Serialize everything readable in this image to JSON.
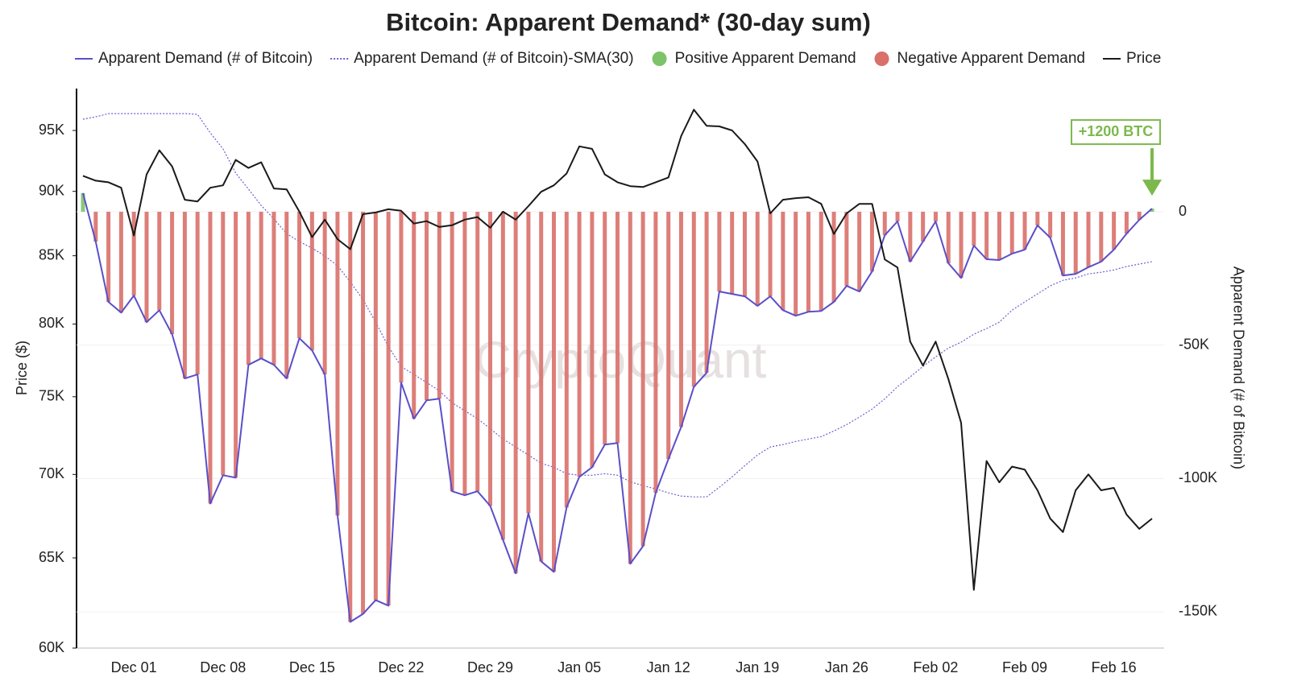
{
  "chart_data": {
    "type": "line",
    "title": "Bitcoin: Apparent Demand* (30-day sum)",
    "ylabel": "Price ($)",
    "y2label": "Apparent Demand (# of Bitcoin)",
    "watermark": "CryptoQuant",
    "annotation": "+1200 BTC",
    "annotation_color": "#7cb94c",
    "yscale": "log",
    "grid": true,
    "categories": [
      null,
      null,
      null,
      null,
      "Dec 01",
      null,
      null,
      null,
      null,
      null,
      null,
      "Dec 08",
      null,
      null,
      null,
      null,
      null,
      null,
      "Dec 15",
      null,
      null,
      null,
      null,
      null,
      null,
      "Dec 22",
      null,
      null,
      null,
      null,
      null,
      null,
      "Dec 29",
      null,
      null,
      null,
      null,
      null,
      null,
      "Jan 05",
      null,
      null,
      null,
      null,
      null,
      null,
      "Jan 12",
      null,
      null,
      null,
      null,
      null,
      null,
      "Jan 19",
      null,
      null,
      null,
      null,
      null,
      null,
      "Jan 26",
      null,
      null,
      null,
      null,
      null,
      null,
      "Feb 02",
      null,
      null,
      null,
      null,
      null,
      null,
      "Feb 09",
      null,
      null,
      null,
      null,
      null,
      null,
      "Feb 16",
      null,
      null,
      null
    ],
    "ylim": [
      60000,
      98600
    ],
    "yticks": [
      {
        "value": 60000,
        "label": "60K"
      },
      {
        "value": 65000,
        "label": "65K"
      },
      {
        "value": 70000,
        "label": "70K"
      },
      {
        "value": 75000,
        "label": "75K"
      },
      {
        "value": 80000,
        "label": "80K"
      },
      {
        "value": 85000,
        "label": "85K"
      },
      {
        "value": 90000,
        "label": "90K"
      },
      {
        "value": 95000,
        "label": "95K"
      }
    ],
    "y2lim": [
      -163600,
      46200
    ],
    "y2ticks": [
      0,
      {
        "value": -50000,
        "label": "-50K"
      },
      {
        "value": -100000,
        "label": "-100K"
      },
      {
        "value": -150000,
        "label": "-150K"
      }
    ],
    "bar_legend": [
      {
        "name": "Positive Apparent Demand",
        "color": "#7cc36a"
      },
      {
        "name": "Negative Apparent Demand",
        "color": "#d9706a"
      }
    ],
    "series": [
      {
        "name": "Apparent Demand (# of Bitcoin)",
        "color": "#5a4fc8",
        "axis": "y2",
        "style": "solid",
        "bars": true,
        "values": [
          7000,
          -11200,
          -33800,
          -37800,
          -31400,
          -41400,
          -36900,
          -45900,
          -62500,
          -61000,
          -109400,
          -98800,
          -99700,
          -57400,
          -55000,
          -57400,
          -62500,
          -47400,
          -52000,
          -61000,
          -113900,
          -153800,
          -150800,
          -145600,
          -147700,
          -64000,
          -77600,
          -70700,
          -70100,
          -104800,
          -106300,
          -104800,
          -110300,
          -123000,
          -135600,
          -113000,
          -131100,
          -135000,
          -110900,
          -99400,
          -95800,
          -87300,
          -86700,
          -132000,
          -125400,
          -105400,
          -92700,
          -80700,
          -65600,
          -60400,
          -29900,
          -30800,
          -31700,
          -35300,
          -31700,
          -36900,
          -39000,
          -37500,
          -37200,
          -33800,
          -27800,
          -29900,
          -22400,
          -8800,
          -3600,
          -18700,
          -11200,
          -3600,
          -19300,
          -24800,
          -12700,
          -17800,
          -18100,
          -15700,
          -14200,
          -5100,
          -9700,
          -23900,
          -23300,
          -20800,
          -18700,
          -14200,
          -8200,
          -3000,
          1200
        ]
      },
      {
        "name": "Apparent Demand (# of Bitcoin)-SMA(30)",
        "color": "#6a62d0",
        "axis": "y2",
        "style": "dotted",
        "values": [
          34700,
          35600,
          36800,
          36800,
          36800,
          36800,
          36800,
          36800,
          36800,
          36500,
          29600,
          23600,
          14500,
          8500,
          2400,
          -2700,
          -8200,
          -11200,
          -13600,
          -16600,
          -20200,
          -26300,
          -32900,
          -41400,
          -50500,
          -58000,
          -61000,
          -64000,
          -67100,
          -71600,
          -74600,
          -77600,
          -81300,
          -85200,
          -88200,
          -91200,
          -94300,
          -95800,
          -98200,
          -98800,
          -98800,
          -98200,
          -98800,
          -101200,
          -102700,
          -103900,
          -105400,
          -106600,
          -106900,
          -106900,
          -103300,
          -99400,
          -95200,
          -91200,
          -88200,
          -87300,
          -86100,
          -85200,
          -84300,
          -82200,
          -79800,
          -77000,
          -74000,
          -70100,
          -65600,
          -61900,
          -58000,
          -54400,
          -51100,
          -48900,
          -45900,
          -43800,
          -41400,
          -36900,
          -33800,
          -30800,
          -27800,
          -25700,
          -24800,
          -23300,
          -22700,
          -21800,
          -20500,
          -19600,
          -18700
        ]
      },
      {
        "name": "Price",
        "color": "#1a1a1a",
        "axis": "y",
        "style": "solid",
        "values": [
          91250,
          90860,
          90730,
          90290,
          86540,
          91370,
          93340,
          92020,
          89330,
          89200,
          90290,
          90480,
          92550,
          91890,
          92350,
          90230,
          90160,
          88390,
          86410,
          87770,
          86260,
          85500,
          88200,
          88330,
          88580,
          88460,
          87460,
          87650,
          87200,
          87330,
          87770,
          87970,
          87140,
          88390,
          87770,
          88830,
          89970,
          90480,
          91440,
          93670,
          93460,
          91370,
          90730,
          90420,
          90350,
          90730,
          91120,
          94530,
          96770,
          95400,
          95340,
          95000,
          93860,
          92420,
          88260,
          89330,
          89460,
          89530,
          89010,
          86660,
          88260,
          89010,
          89010,
          84720,
          84120,
          78760,
          77110,
          78760,
          76190,
          73280,
          63180,
          70840,
          69510,
          70490,
          70300,
          69020,
          67310,
          66510,
          69020,
          70000,
          69020,
          69170,
          67550,
          66700,
          67310
        ]
      }
    ]
  }
}
